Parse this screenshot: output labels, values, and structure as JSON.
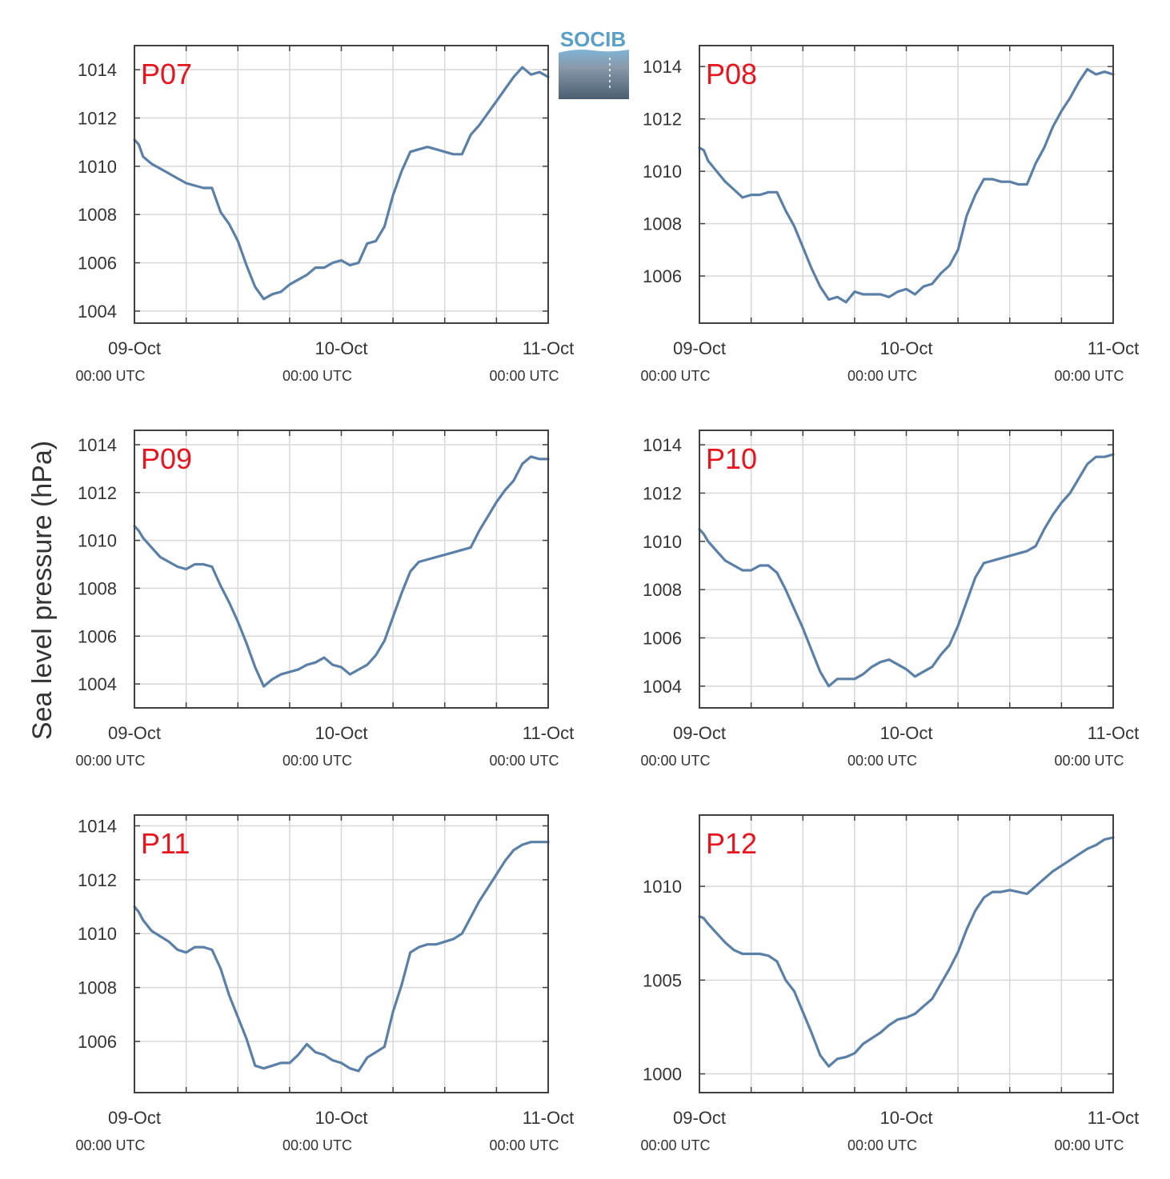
{
  "colors": {
    "line": "#5b80a8",
    "grid": "#d8d8d8",
    "axis": "#404040",
    "title": "#e8141e",
    "logo_text": "#5a9fc8"
  },
  "logo": {
    "text": "SOCIB"
  },
  "ylabel": "Sea level pressure (hPa)",
  "xaxis": {
    "ticks": [
      {
        "date": "09-Oct",
        "time": "00:00 UTC"
      },
      {
        "date": "10-Oct",
        "time": "00:00 UTC"
      },
      {
        "date": "11-Oct",
        "time": "00:00 UTC"
      }
    ]
  },
  "chart_data": [
    {
      "type": "line",
      "title": "P07",
      "ylim": [
        1003.5,
        1015
      ],
      "yticks": [
        1004,
        1006,
        1008,
        1010,
        1012,
        1014
      ],
      "xlim": [
        0,
        48
      ],
      "grid": true,
      "x": [
        0,
        0.5,
        1,
        2,
        3,
        4,
        5,
        6,
        7,
        8,
        9,
        10,
        11,
        12,
        13,
        14,
        15,
        16,
        17,
        18,
        19,
        20,
        21,
        22,
        23,
        24,
        25,
        26,
        27,
        28,
        29,
        30,
        31,
        32,
        33,
        34,
        35,
        36,
        37,
        38,
        39,
        40,
        41,
        42,
        43,
        44,
        45,
        46,
        47,
        48
      ],
      "y": [
        1011.1,
        1010.9,
        1010.4,
        1010.1,
        1009.9,
        1009.7,
        1009.5,
        1009.3,
        1009.2,
        1009.1,
        1009.1,
        1008.1,
        1007.6,
        1006.9,
        1005.9,
        1005.0,
        1004.5,
        1004.7,
        1004.8,
        1005.1,
        1005.3,
        1005.5,
        1005.8,
        1005.8,
        1006.0,
        1006.1,
        1005.9,
        1006.0,
        1006.8,
        1006.9,
        1007.5,
        1008.8,
        1009.8,
        1010.6,
        1010.7,
        1010.8,
        1010.7,
        1010.6,
        1010.5,
        1010.5,
        1011.3,
        1011.7,
        1012.2,
        1012.7,
        1013.2,
        1013.7,
        1014.1,
        1013.8,
        1013.9,
        1013.7
      ]
    },
    {
      "type": "line",
      "title": "P08",
      "ylim": [
        1004.2,
        1014.8
      ],
      "yticks": [
        1006,
        1008,
        1010,
        1012,
        1014
      ],
      "xlim": [
        0,
        48
      ],
      "grid": true,
      "x": [
        0,
        0.5,
        1,
        2,
        3,
        4,
        5,
        6,
        7,
        8,
        9,
        10,
        11,
        12,
        13,
        14,
        15,
        16,
        17,
        18,
        19,
        20,
        21,
        22,
        23,
        24,
        25,
        26,
        27,
        28,
        29,
        30,
        31,
        32,
        33,
        34,
        35,
        36,
        37,
        38,
        39,
        40,
        41,
        42,
        43,
        44,
        45,
        46,
        47,
        48
      ],
      "y": [
        1010.9,
        1010.8,
        1010.4,
        1010.0,
        1009.6,
        1009.3,
        1009.0,
        1009.1,
        1009.1,
        1009.2,
        1009.2,
        1008.5,
        1007.9,
        1007.1,
        1006.3,
        1005.6,
        1005.1,
        1005.2,
        1005.0,
        1005.4,
        1005.3,
        1005.3,
        1005.3,
        1005.2,
        1005.4,
        1005.5,
        1005.3,
        1005.6,
        1005.7,
        1006.1,
        1006.4,
        1007.0,
        1008.3,
        1009.1,
        1009.7,
        1009.7,
        1009.6,
        1009.6,
        1009.5,
        1009.5,
        1010.3,
        1010.9,
        1011.7,
        1012.3,
        1012.8,
        1013.4,
        1013.9,
        1013.7,
        1013.8,
        1013.7
      ]
    },
    {
      "type": "line",
      "title": "P09",
      "ylim": [
        1003,
        1014.6
      ],
      "yticks": [
        1004,
        1006,
        1008,
        1010,
        1012,
        1014
      ],
      "xlim": [
        0,
        48
      ],
      "grid": true,
      "x": [
        0,
        0.5,
        1,
        2,
        3,
        4,
        5,
        6,
        7,
        8,
        9,
        10,
        11,
        12,
        13,
        14,
        15,
        16,
        17,
        18,
        19,
        20,
        21,
        22,
        23,
        24,
        25,
        26,
        27,
        28,
        29,
        30,
        31,
        32,
        33,
        34,
        35,
        36,
        37,
        38,
        39,
        40,
        41,
        42,
        43,
        44,
        45,
        46,
        47,
        48
      ],
      "y": [
        1010.6,
        1010.4,
        1010.1,
        1009.7,
        1009.3,
        1009.1,
        1008.9,
        1008.8,
        1009.0,
        1009.0,
        1008.9,
        1008.1,
        1007.4,
        1006.6,
        1005.7,
        1004.7,
        1003.9,
        1004.2,
        1004.4,
        1004.5,
        1004.6,
        1004.8,
        1004.9,
        1005.1,
        1004.8,
        1004.7,
        1004.4,
        1004.6,
        1004.8,
        1005.2,
        1005.8,
        1006.8,
        1007.8,
        1008.7,
        1009.1,
        1009.2,
        1009.3,
        1009.4,
        1009.5,
        1009.6,
        1009.7,
        1010.4,
        1011.0,
        1011.6,
        1012.1,
        1012.5,
        1013.2,
        1013.5,
        1013.4,
        1013.4
      ]
    },
    {
      "type": "line",
      "title": "P10",
      "ylim": [
        1003.1,
        1014.6
      ],
      "yticks": [
        1004,
        1006,
        1008,
        1010,
        1012,
        1014
      ],
      "xlim": [
        0,
        48
      ],
      "grid": true,
      "x": [
        0,
        0.5,
        1,
        2,
        3,
        4,
        5,
        6,
        7,
        8,
        9,
        10,
        11,
        12,
        13,
        14,
        15,
        16,
        17,
        18,
        19,
        20,
        21,
        22,
        23,
        24,
        25,
        26,
        27,
        28,
        29,
        30,
        31,
        32,
        33,
        34,
        35,
        36,
        37,
        38,
        39,
        40,
        41,
        42,
        43,
        44,
        45,
        46,
        47,
        48
      ],
      "y": [
        1010.5,
        1010.3,
        1010.0,
        1009.6,
        1009.2,
        1009.0,
        1008.8,
        1008.8,
        1009.0,
        1009.0,
        1008.7,
        1008.0,
        1007.2,
        1006.4,
        1005.5,
        1004.6,
        1004.0,
        1004.3,
        1004.3,
        1004.3,
        1004.5,
        1004.8,
        1005.0,
        1005.1,
        1004.9,
        1004.7,
        1004.4,
        1004.6,
        1004.8,
        1005.3,
        1005.7,
        1006.5,
        1007.5,
        1008.5,
        1009.1,
        1009.2,
        1009.3,
        1009.4,
        1009.5,
        1009.6,
        1009.8,
        1010.5,
        1011.1,
        1011.6,
        1012.0,
        1012.6,
        1013.2,
        1013.5,
        1013.5,
        1013.6
      ]
    },
    {
      "type": "line",
      "title": "P11",
      "ylim": [
        1004.1,
        1014.4
      ],
      "yticks": [
        1006,
        1008,
        1010,
        1012,
        1014
      ],
      "xlim": [
        0,
        48
      ],
      "grid": true,
      "x": [
        0,
        0.5,
        1,
        2,
        3,
        4,
        5,
        6,
        7,
        8,
        9,
        10,
        11,
        12,
        13,
        14,
        15,
        16,
        17,
        18,
        19,
        20,
        21,
        22,
        23,
        24,
        25,
        26,
        27,
        28,
        29,
        30,
        31,
        32,
        33,
        34,
        35,
        36,
        37,
        38,
        39,
        40,
        41,
        42,
        43,
        44,
        45,
        46,
        47,
        48
      ],
      "y": [
        1011.0,
        1010.8,
        1010.5,
        1010.1,
        1009.9,
        1009.7,
        1009.4,
        1009.3,
        1009.5,
        1009.5,
        1009.4,
        1008.7,
        1007.7,
        1006.9,
        1006.1,
        1005.1,
        1005.0,
        1005.1,
        1005.2,
        1005.2,
        1005.5,
        1005.9,
        1005.6,
        1005.5,
        1005.3,
        1005.2,
        1005.0,
        1004.9,
        1005.4,
        1005.6,
        1005.8,
        1007.1,
        1008.1,
        1009.3,
        1009.5,
        1009.6,
        1009.6,
        1009.7,
        1009.8,
        1010.0,
        1010.6,
        1011.2,
        1011.7,
        1012.2,
        1012.7,
        1013.1,
        1013.3,
        1013.4,
        1013.4,
        1013.4
      ]
    },
    {
      "type": "line",
      "title": "P12",
      "ylim": [
        999,
        1013.8
      ],
      "yticks": [
        1000,
        1005,
        1010
      ],
      "xlim": [
        0,
        48
      ],
      "grid": true,
      "x": [
        0,
        0.5,
        1,
        2,
        3,
        4,
        5,
        6,
        7,
        8,
        9,
        10,
        11,
        12,
        13,
        14,
        15,
        16,
        17,
        18,
        19,
        20,
        21,
        22,
        23,
        24,
        25,
        26,
        27,
        28,
        29,
        30,
        31,
        32,
        33,
        34,
        35,
        36,
        37,
        38,
        39,
        40,
        41,
        42,
        43,
        44,
        45,
        46,
        47,
        48
      ],
      "y": [
        1008.4,
        1008.3,
        1008.0,
        1007.5,
        1007.0,
        1006.6,
        1006.4,
        1006.4,
        1006.4,
        1006.3,
        1006.0,
        1005.0,
        1004.4,
        1003.3,
        1002.2,
        1001.0,
        1000.4,
        1000.8,
        1000.9,
        1001.1,
        1001.6,
        1001.9,
        1002.2,
        1002.6,
        1002.9,
        1003.0,
        1003.2,
        1003.6,
        1004.0,
        1004.8,
        1005.6,
        1006.5,
        1007.7,
        1008.7,
        1009.4,
        1009.7,
        1009.7,
        1009.8,
        1009.7,
        1009.6,
        1010.0,
        1010.4,
        1010.8,
        1011.1,
        1011.4,
        1011.7,
        1012.0,
        1012.2,
        1012.5,
        1012.6
      ]
    }
  ]
}
